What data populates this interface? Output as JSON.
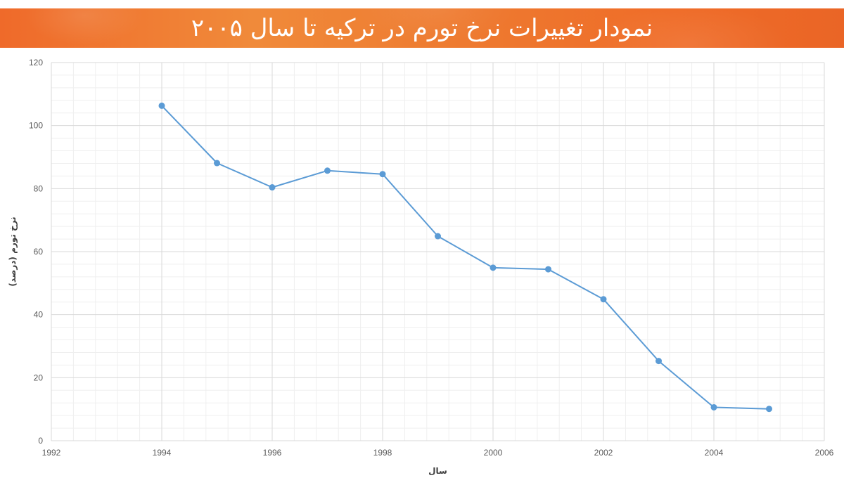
{
  "header": {
    "title": "نمودار تغییرات نرخ تورم در ترکیه تا سال ۲۰۰۵"
  },
  "chart_data": {
    "type": "line",
    "title": "نمودار تغییرات نرخ تورم در ترکیه تا سال ۲۰۰۵",
    "xlabel": "سال",
    "ylabel": "نرخ تورم (درصد)",
    "xlim": [
      1992,
      2006
    ],
    "ylim": [
      0,
      120
    ],
    "x_ticks": [
      "1992",
      "1994",
      "1996",
      "1998",
      "2000",
      "2002",
      "2004",
      "2006"
    ],
    "y_ticks": [
      "0",
      "20",
      "40",
      "60",
      "80",
      "100",
      "120"
    ],
    "grid": true,
    "series": [
      {
        "color": "#5b9bd5",
        "x": [
          1994,
          1995,
          1996,
          1997,
          1998,
          1999,
          2000,
          2001,
          2002,
          2003,
          2004,
          2005
        ],
        "y": [
          106.3,
          88.1,
          80.4,
          85.7,
          84.6,
          64.9,
          54.9,
          54.4,
          44.9,
          25.3,
          10.6,
          10.1
        ]
      }
    ]
  }
}
